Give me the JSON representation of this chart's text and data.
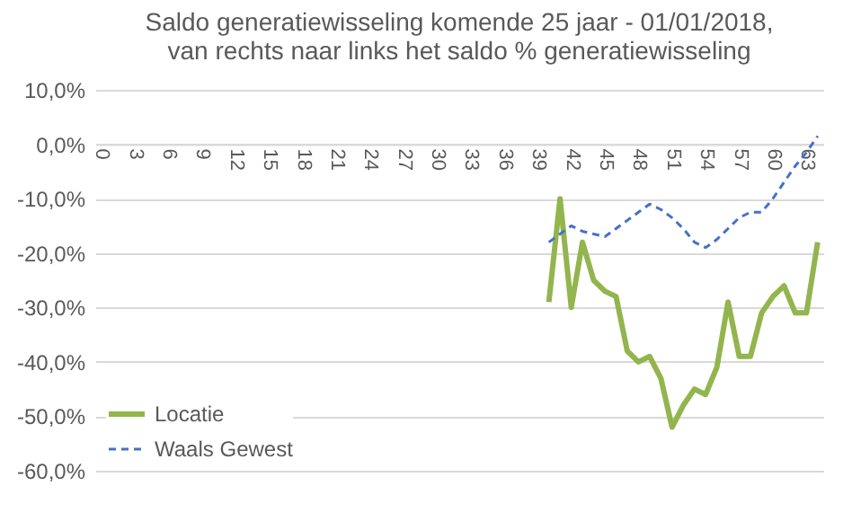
{
  "chart_data": {
    "type": "line",
    "title": "Saldo generatiewisseling komende 25 jaar - 01/01/2018,\nvan rechts naar links  het saldo % generatiewisseling",
    "categories": [
      "0",
      null,
      null,
      "3",
      null,
      null,
      "6",
      null,
      null,
      "9",
      null,
      null,
      "12",
      null,
      null,
      "15",
      null,
      null,
      "18",
      null,
      null,
      "21",
      null,
      null,
      "24",
      null,
      null,
      "27",
      null,
      null,
      "30",
      null,
      null,
      "33",
      null,
      null,
      "36",
      null,
      null,
      "39",
      null,
      null,
      "42",
      null,
      null,
      "45",
      null,
      null,
      "48",
      null,
      null,
      "51",
      null,
      null,
      "54",
      null,
      null,
      "57",
      null,
      null,
      "60",
      null,
      null,
      "63",
      null
    ],
    "series": [
      {
        "name": "Locatie",
        "color": "#92b54d",
        "line_style": "solid",
        "values": [
          null,
          null,
          null,
          null,
          null,
          null,
          null,
          null,
          null,
          null,
          null,
          null,
          null,
          null,
          null,
          null,
          null,
          null,
          null,
          null,
          null,
          null,
          null,
          null,
          null,
          null,
          null,
          null,
          null,
          null,
          null,
          null,
          null,
          null,
          null,
          null,
          null,
          null,
          null,
          null,
          -29,
          -10,
          -30,
          -18,
          -25,
          -27,
          -28,
          -38,
          -40,
          -39,
          -43,
          -52,
          -48,
          -45,
          -46,
          -41,
          -29,
          -39,
          -39,
          -31,
          -28,
          -26,
          -31,
          -31,
          -18
        ]
      },
      {
        "name": "Waals Gewest",
        "color": "#4472c4",
        "line_style": "dashed",
        "values": [
          null,
          null,
          null,
          null,
          null,
          null,
          null,
          null,
          null,
          null,
          null,
          null,
          null,
          null,
          null,
          null,
          null,
          null,
          null,
          null,
          null,
          null,
          null,
          null,
          null,
          null,
          null,
          null,
          null,
          null,
          null,
          null,
          null,
          null,
          null,
          null,
          null,
          null,
          null,
          null,
          -18,
          -16.5,
          -15,
          -16,
          -16.5,
          -17,
          -15.5,
          -14,
          -12.5,
          -11,
          -12,
          -13.5,
          -15.5,
          -18,
          -19,
          -17.5,
          -15.5,
          -13.5,
          -12.5,
          -12.5,
          -10,
          -7,
          -4,
          -1.5,
          1.5
        ]
      }
    ],
    "ylim": [
      -60,
      10
    ],
    "yticks": [
      {
        "value": 10,
        "label": "10,0%"
      },
      {
        "value": 0,
        "label": "0,0%"
      },
      {
        "value": -10,
        "label": "-10,0%"
      },
      {
        "value": -20,
        "label": "-20,0%"
      },
      {
        "value": -30,
        "label": "-30,0%"
      },
      {
        "value": -40,
        "label": "-40,0%"
      },
      {
        "value": -50,
        "label": "-50,0%"
      },
      {
        "value": -60,
        "label": "-60,0%"
      }
    ],
    "grid": "y",
    "legend": "bottom left",
    "marker": "none"
  }
}
